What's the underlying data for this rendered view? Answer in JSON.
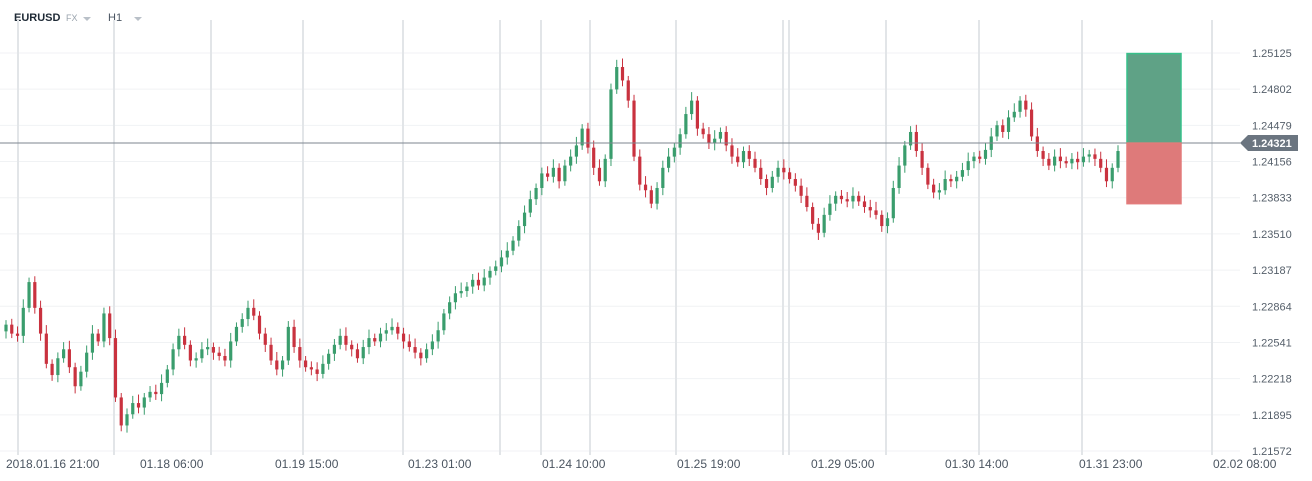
{
  "toolbar": {
    "symbol": "EURUSD",
    "market": "FX",
    "timeframe": "H1"
  },
  "colors": {
    "up": "#3a9d6d",
    "down": "#c9323f",
    "profit_zone": "#5fa286",
    "loss_zone": "#de7a7a",
    "current_price_bg": "#6b7580"
  },
  "chart_data": {
    "type": "candlestick",
    "title": "",
    "xlabel": "",
    "ylabel": "",
    "ylim": [
      1.2157,
      1.2535
    ],
    "y_ticks": [
      "1.25125",
      "1.24802",
      "1.24479",
      "1.24156",
      "1.23833",
      "1.23510",
      "1.23187",
      "1.22864",
      "1.22541",
      "1.22218",
      "1.21895",
      "1.21572"
    ],
    "x_ticks": [
      "2018.01.16  21:00",
      "01.18  06:00",
      "01.19  15:00",
      "01.23  01:00",
      "01.24  10:00",
      "01.25  19:00",
      "01.29  05:00",
      "01.30  14:00",
      "01.31  23:00",
      "02.02  08:00"
    ],
    "current_price": "1.24321",
    "position_zone": {
      "entry": 1.24321,
      "take_profit": 1.2512,
      "stop_loss": 1.2378
    },
    "close_series": [
      1.227,
      1.2262,
      1.226,
      1.2285,
      1.2308,
      1.2285,
      1.2262,
      1.2235,
      1.2225,
      1.224,
      1.2248,
      1.2232,
      1.2215,
      1.2228,
      1.2245,
      1.2262,
      1.2255,
      1.228,
      1.2258,
      1.2205,
      1.218,
      1.219,
      1.22,
      1.2196,
      1.2205,
      1.221,
      1.2208,
      1.2218,
      1.223,
      1.2248,
      1.226,
      1.2252,
      1.2238,
      1.224,
      1.2248,
      1.225,
      1.2245,
      1.2242,
      1.2238,
      1.2255,
      1.2268,
      1.2275,
      1.2285,
      1.2278,
      1.2262,
      1.2252,
      1.2238,
      1.223,
      1.2238,
      1.2268,
      1.225,
      1.2238,
      1.2232,
      1.223,
      1.2226,
      1.2235,
      1.2244,
      1.2252,
      1.226,
      1.2252,
      1.2248,
      1.224,
      1.225,
      1.2258,
      1.2255,
      1.2262,
      1.2265,
      1.2268,
      1.2262,
      1.2255,
      1.225,
      1.2245,
      1.224,
      1.2248,
      1.2255,
      1.2265,
      1.228,
      1.229,
      1.2298,
      1.23,
      1.2304,
      1.231,
      1.2305,
      1.2312,
      1.2318,
      1.2322,
      1.233,
      1.2336,
      1.2345,
      1.2358,
      1.237,
      1.2382,
      1.2392,
      1.2405,
      1.2402,
      1.241,
      1.2398,
      1.2412,
      1.242,
      1.243,
      1.2445,
      1.2428,
      1.241,
      1.2398,
      1.2418,
      1.248,
      1.25,
      1.2488,
      1.247,
      1.242,
      1.2395,
      1.239,
      1.2378,
      1.2392,
      1.241,
      1.242,
      1.2428,
      1.244,
      1.2458,
      1.247,
      1.2445,
      1.244,
      1.2432,
      1.2436,
      1.2442,
      1.243,
      1.242,
      1.2415,
      1.2425,
      1.2418,
      1.241,
      1.24,
      1.2392,
      1.2402,
      1.241,
      1.2406,
      1.24,
      1.2394,
      1.2385,
      1.2375,
      1.236,
      1.2352,
      1.2368,
      1.2378,
      1.2385,
      1.2382,
      1.238,
      1.2385,
      1.238,
      1.2375,
      1.2372,
      1.2368,
      1.2358,
      1.2365,
      1.2392,
      1.2412,
      1.243,
      1.2442,
      1.2425,
      1.241,
      1.2395,
      1.2388,
      1.239,
      1.24,
      1.2398,
      1.2402,
      1.2408,
      1.2416,
      1.242,
      1.2418,
      1.2426,
      1.2438,
      1.2448,
      1.2442,
      1.2455,
      1.246,
      1.247,
      1.2462,
      1.2438,
      1.2425,
      1.2418,
      1.2412,
      1.242,
      1.2416,
      1.2414,
      1.2418,
      1.2415,
      1.242,
      1.2422,
      1.2418,
      1.241,
      1.2398,
      1.241,
      1.2425
    ]
  }
}
